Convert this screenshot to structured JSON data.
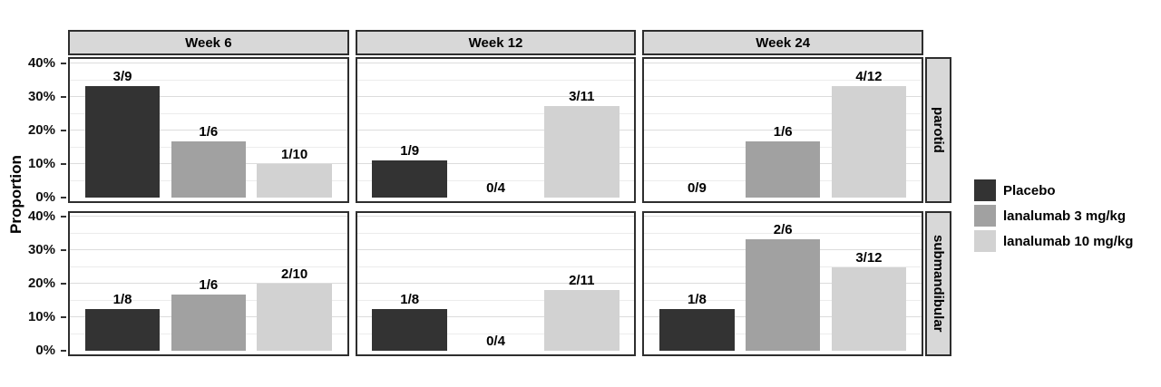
{
  "figure": {
    "ylabel": "Proportion"
  },
  "legend": {
    "items": [
      {
        "label": "Placebo",
        "color": "#333333"
      },
      {
        "label": "lanalumab 3 mg/kg",
        "color": "#a1a1a1"
      },
      {
        "label": "lanalumab 10 mg/kg",
        "color": "#d2d2d2"
      }
    ]
  },
  "chart_data": {
    "type": "bar",
    "title": "",
    "xlabel": "",
    "ylabel": "Proportion",
    "ylim": [
      0,
      40
    ],
    "ytick_labels": [
      "0%",
      "10%",
      "20%",
      "30%",
      "40%"
    ],
    "ytick_values": [
      0,
      10,
      20,
      30,
      40
    ],
    "minor_grid_step_pct": 5,
    "grid": "on",
    "legend_position": "right",
    "facet_columns": [
      "Week 6",
      "Week 12",
      "Week 24"
    ],
    "facet_rows": [
      "parotid",
      "submandibular"
    ],
    "groups": [
      {
        "name": "Placebo",
        "color": "#333333"
      },
      {
        "name": "lanalumab 3 mg/kg",
        "color": "#a1a1a1"
      },
      {
        "name": "lanalumab 10 mg/kg",
        "color": "#d2d2d2"
      }
    ],
    "rows": [
      {
        "organ": "parotid",
        "panels": [
          {
            "week": "Week 6",
            "bars": [
              {
                "group": "Placebo",
                "label": "3/9",
                "pct": 33.3
              },
              {
                "group": "lanalumab 3 mg/kg",
                "label": "1/6",
                "pct": 16.7
              },
              {
                "group": "lanalumab 10 mg/kg",
                "label": "1/10",
                "pct": 10.0
              }
            ]
          },
          {
            "week": "Week 12",
            "bars": [
              {
                "group": "Placebo",
                "label": "1/9",
                "pct": 11.1
              },
              {
                "group": "lanalumab 3 mg/kg",
                "label": "0/4",
                "pct": 0.0
              },
              {
                "group": "lanalumab 10 mg/kg",
                "label": "3/11",
                "pct": 27.3
              }
            ]
          },
          {
            "week": "Week 24",
            "bars": [
              {
                "group": "Placebo",
                "label": "0/9",
                "pct": 0.0
              },
              {
                "group": "lanalumab 3 mg/kg",
                "label": "1/6",
                "pct": 16.7
              },
              {
                "group": "lanalumab 10 mg/kg",
                "label": "4/12",
                "pct": 33.3
              }
            ]
          }
        ]
      },
      {
        "organ": "submandibular",
        "panels": [
          {
            "week": "Week 6",
            "bars": [
              {
                "group": "Placebo",
                "label": "1/8",
                "pct": 12.5
              },
              {
                "group": "lanalumab 3 mg/kg",
                "label": "1/6",
                "pct": 16.7
              },
              {
                "group": "lanalumab 10 mg/kg",
                "label": "2/10",
                "pct": 20.0
              }
            ]
          },
          {
            "week": "Week 12",
            "bars": [
              {
                "group": "Placebo",
                "label": "1/8",
                "pct": 12.5
              },
              {
                "group": "lanalumab 3 mg/kg",
                "label": "0/4",
                "pct": 0.0
              },
              {
                "group": "lanalumab 10 mg/kg",
                "label": "2/11",
                "pct": 18.2
              }
            ]
          },
          {
            "week": "Week 24",
            "bars": [
              {
                "group": "Placebo",
                "label": "1/8",
                "pct": 12.5
              },
              {
                "group": "lanalumab 3 mg/kg",
                "label": "2/6",
                "pct": 33.3
              },
              {
                "group": "lanalumab 10 mg/kg",
                "label": "3/12",
                "pct": 25.0
              }
            ]
          }
        ]
      }
    ]
  }
}
